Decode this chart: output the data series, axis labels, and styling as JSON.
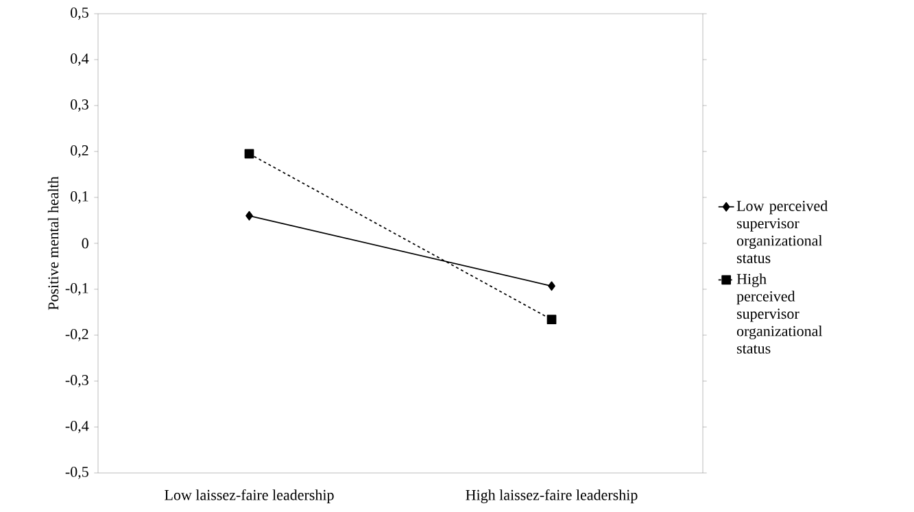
{
  "chart_data": {
    "type": "line",
    "ylabel": "Positive mental health",
    "categories": [
      "Low laissez-faire leadership",
      "High laissez-faire leadership"
    ],
    "series": [
      {
        "name": "Low perceived supervisor organizational status",
        "color": "#000000",
        "values": [
          0.06,
          -0.093
        ],
        "marker": "diamond",
        "line_style": "solid"
      },
      {
        "name": "High perceived supervisor organizational status",
        "color": "#000000",
        "values": [
          0.195,
          -0.166
        ],
        "marker": "square",
        "line_style": "dashed"
      }
    ],
    "ylim": [
      -0.5,
      0.5
    ],
    "yticks": [
      {
        "value": -0.5,
        "label": "-0,5"
      },
      {
        "value": -0.4,
        "label": "-0,4"
      },
      {
        "value": -0.3,
        "label": "-0,3"
      },
      {
        "value": -0.2,
        "label": "-0,2"
      },
      {
        "value": -0.1,
        "label": "-0,1"
      },
      {
        "value": 0,
        "label": "0"
      },
      {
        "value": 0.1,
        "label": "0,1"
      },
      {
        "value": 0.2,
        "label": "0,2"
      },
      {
        "value": 0.3,
        "label": "0,3"
      },
      {
        "value": 0.4,
        "label": "0,4"
      },
      {
        "value": 0.5,
        "label": "0,5"
      }
    ],
    "grid": false,
    "legend": "right"
  }
}
